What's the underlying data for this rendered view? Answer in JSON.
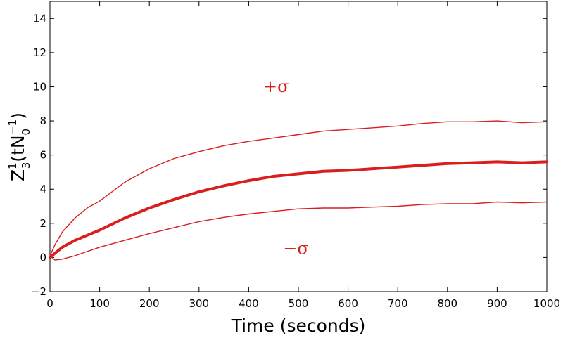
{
  "chart_data": {
    "type": "line",
    "title": "",
    "xlabel": "Time (seconds)",
    "ylabel": {
      "base": "Z",
      "base_sup": "1",
      "base_sub": "3",
      "open": "(tN",
      "n_sub": "0",
      "n_sup": "−1",
      "close": ")"
    },
    "xlim": [
      0,
      1000
    ],
    "ylim": [
      -2,
      15
    ],
    "xticks": [
      0,
      100,
      200,
      300,
      400,
      500,
      600,
      700,
      800,
      900,
      1000
    ],
    "yticks": [
      -2,
      0,
      2,
      4,
      6,
      8,
      10,
      12,
      14
    ],
    "ytick_labels": [
      "−2",
      "0",
      "2",
      "4",
      "6",
      "8",
      "10",
      "12",
      "14"
    ],
    "grid": false,
    "line_color": "#d91e1e",
    "annotations": [
      {
        "text": "+σ",
        "x": 455,
        "y": 9.7
      },
      {
        "text": "−σ",
        "x": 495,
        "y": 0.2
      }
    ],
    "x": [
      0,
      10,
      25,
      50,
      75,
      100,
      150,
      200,
      250,
      300,
      350,
      400,
      450,
      500,
      550,
      600,
      650,
      700,
      750,
      800,
      850,
      900,
      950,
      1000
    ],
    "series": [
      {
        "values": [
          0.1,
          0.75,
          1.5,
          2.3,
          2.9,
          3.3,
          4.4,
          5.2,
          5.8,
          6.2,
          6.55,
          6.8,
          7.0,
          7.2,
          7.4,
          7.5,
          7.6,
          7.7,
          7.85,
          7.95,
          7.95,
          8.0,
          7.9,
          7.95
        ]
      },
      {
        "values": [
          0.0,
          0.25,
          0.6,
          1.0,
          1.3,
          1.6,
          2.3,
          2.9,
          3.4,
          3.85,
          4.2,
          4.5,
          4.75,
          4.9,
          5.05,
          5.1,
          5.2,
          5.3,
          5.4,
          5.5,
          5.55,
          5.6,
          5.55,
          5.6
        ],
        "emphasis": true
      },
      {
        "values": [
          0.1,
          -0.15,
          -0.1,
          0.1,
          0.35,
          0.6,
          1.0,
          1.4,
          1.75,
          2.1,
          2.35,
          2.55,
          2.7,
          2.85,
          2.9,
          2.9,
          2.95,
          3.0,
          3.1,
          3.15,
          3.15,
          3.25,
          3.2,
          3.25
        ]
      }
    ]
  }
}
